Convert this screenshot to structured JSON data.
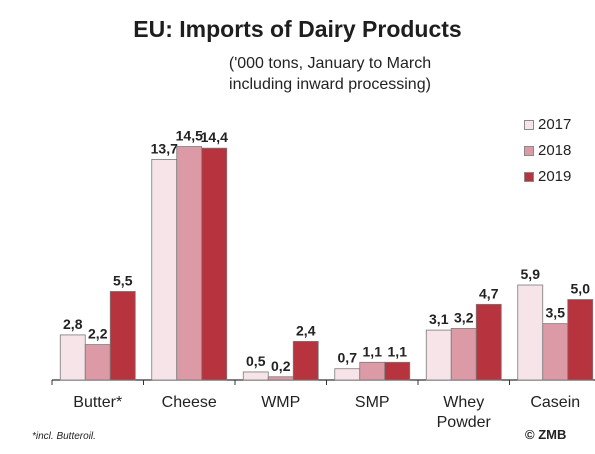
{
  "chart_data": {
    "type": "bar",
    "title": "EU: Imports of Dairy Products",
    "subtitle_lines": [
      "('000 tons, January to March",
      "including inward processing)"
    ],
    "categories": [
      [
        "Butter*"
      ],
      [
        "Cheese"
      ],
      [
        "WMP"
      ],
      [
        "SMP"
      ],
      [
        "Whey",
        "Powder"
      ],
      [
        "Casein"
      ]
    ],
    "series": [
      {
        "name": "2017",
        "color": "#f6e4e8",
        "values": [
          2.8,
          13.7,
          0.5,
          0.7,
          3.1,
          5.9
        ],
        "labels": [
          "2,8",
          "13,7",
          "0,5",
          "0,7",
          "3,1",
          "5,9"
        ]
      },
      {
        "name": "2018",
        "color": "#dc9aa6",
        "values": [
          2.2,
          14.5,
          0.2,
          1.1,
          3.2,
          3.5
        ],
        "labels": [
          "2,2",
          "14,5",
          "0,2",
          "1,1",
          "3,2",
          "3,5"
        ]
      },
      {
        "name": "2019",
        "color": "#b7343e",
        "values": [
          5.5,
          14.4,
          2.4,
          1.1,
          4.7,
          5.0
        ],
        "labels": [
          "5,5",
          "14,4",
          "2,4",
          "1,1",
          "4,7",
          "5,0"
        ]
      }
    ],
    "legend_position": "right",
    "grid": false
  },
  "footnote": "*incl. Butteroil.",
  "source": "© ZMB"
}
